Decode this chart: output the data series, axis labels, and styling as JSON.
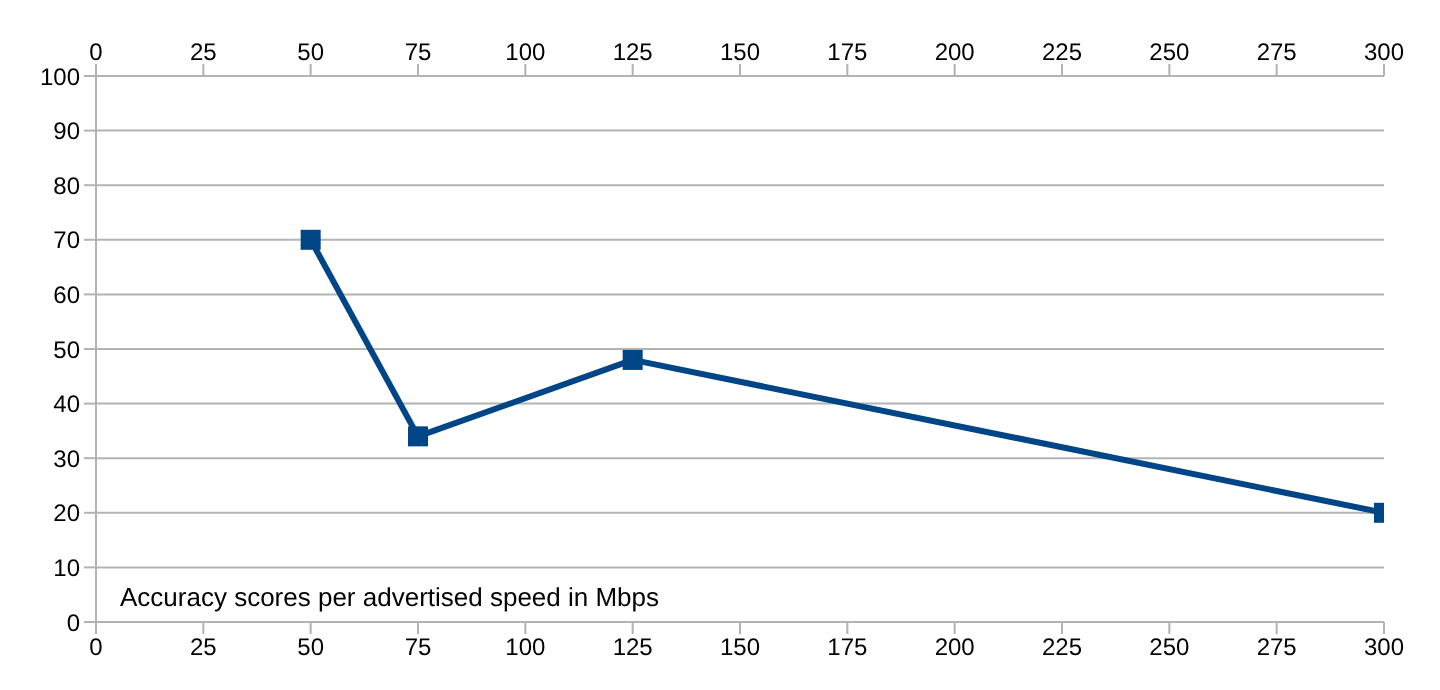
{
  "chart_data": {
    "type": "line",
    "annotations": [
      "Accuracy scores per advertised speed in Mbps"
    ],
    "x": [
      50,
      75,
      125,
      300
    ],
    "series": [
      {
        "color": "#004586",
        "values": [
          70,
          34,
          48,
          20
        ]
      }
    ],
    "xlim": [
      0,
      300
    ],
    "xticks": [
      0,
      25,
      50,
      75,
      100,
      125,
      150,
      175,
      200,
      225,
      250,
      275,
      300
    ],
    "x2lim": [
      0,
      300
    ],
    "x2ticks": [
      0,
      25,
      50,
      75,
      100,
      125,
      150,
      175,
      200,
      225,
      250,
      275,
      300
    ],
    "ylim": [
      0,
      100
    ],
    "yticks": [
      0,
      10,
      20,
      30,
      40,
      50,
      60,
      70,
      80,
      90,
      100
    ],
    "grid": "y",
    "marker": "square",
    "line_style": "solid"
  }
}
